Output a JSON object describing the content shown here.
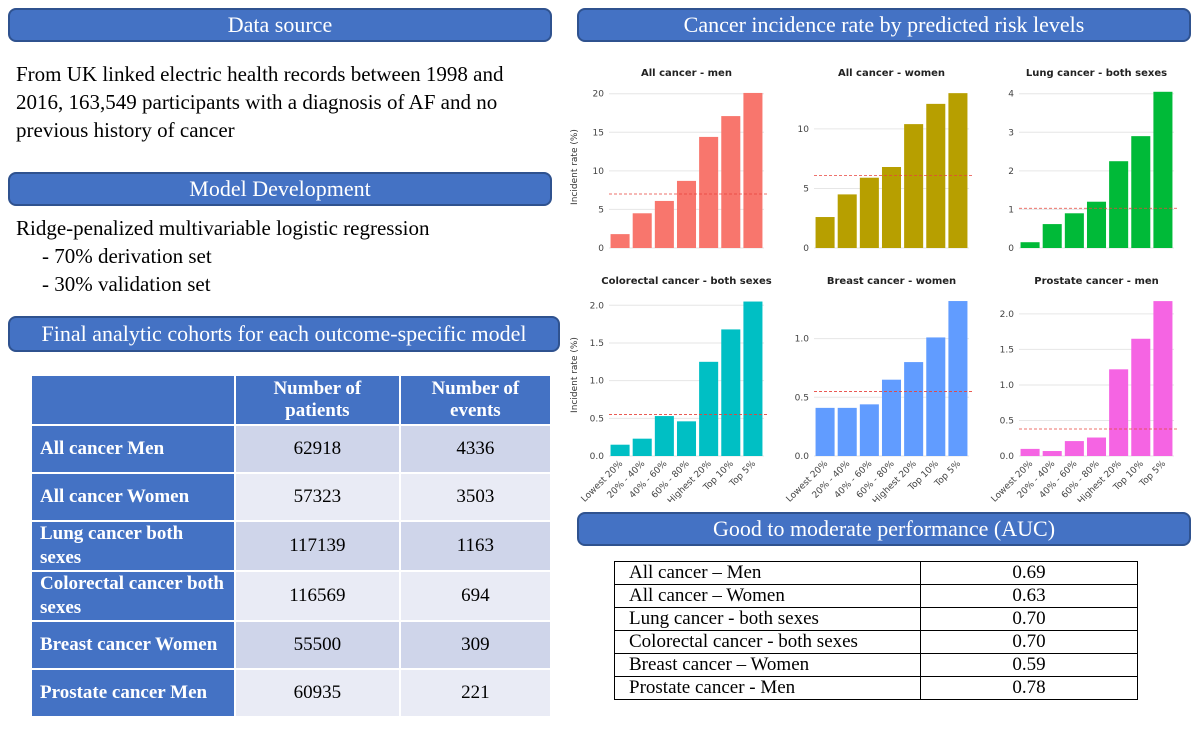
{
  "left": {
    "data_source_title": "Data source",
    "data_source_text": "From UK linked electric health records between 1998 and 2016, 163,549 participants with a diagnosis of AF and no previous history of cancer",
    "model_title": "Model Development",
    "model_line1": "Ridge-penalized multivariable logistic regression",
    "model_line2": "- 70% derivation set",
    "model_line3": "- 30% validation set",
    "cohorts_title": "Final analytic cohorts for each outcome-specific model",
    "cohort_headers": [
      "Number of patients",
      "Number of events"
    ],
    "cohort_rows": [
      {
        "label": "All cancer Men",
        "patients": "62918",
        "events": "4336"
      },
      {
        "label": "All cancer Women",
        "patients": "57323",
        "events": "3503"
      },
      {
        "label": "Lung cancer both sexes",
        "patients": "117139",
        "events": "1163"
      },
      {
        "label": "Colorectal cancer both sexes",
        "patients": "116569",
        "events": "694"
      },
      {
        "label": "Breast cancer Women",
        "patients": "55500",
        "events": "309"
      },
      {
        "label": "Prostate cancer Men",
        "patients": "60935",
        "events": "221"
      }
    ]
  },
  "right": {
    "charts_title": "Cancer incidence rate by predicted risk levels",
    "auc_title": "Good to moderate performance (AUC)",
    "auc_rows": [
      {
        "label": "All cancer – Men",
        "value": "0.69"
      },
      {
        "label": "All cancer – Women",
        "value": "0.63"
      },
      {
        "label": "Lung cancer - both sexes",
        "value": "0.70"
      },
      {
        "label": "Colorectal cancer - both sexes",
        "value": "0.70"
      },
      {
        "label": "Breast cancer – Women",
        "value": "0.59"
      },
      {
        "label": "Prostate cancer - Men",
        "value": "0.78"
      }
    ]
  },
  "chart_data": [
    {
      "type": "bar",
      "title": "All cancer - men",
      "color": "#f8766d",
      "categories": [
        "Lowest 20%",
        "20% - 40%",
        "40% - 60%",
        "60% - 80%",
        "Highest 20%",
        "Top 10%",
        "Top 5%"
      ],
      "values": [
        1.8,
        4.5,
        6.1,
        8.7,
        14.4,
        17.1,
        20.1
      ],
      "ylim": [
        0,
        21
      ],
      "yticks": [
        0,
        5,
        10,
        15,
        20
      ],
      "yticklabels": [
        "0",
        "5",
        "10",
        "15",
        "20"
      ],
      "reference_line": 7.0,
      "ylabel": "Incident rate (%)"
    },
    {
      "type": "bar",
      "title": "All cancer - women",
      "color": "#b79f00",
      "categories": [
        "Lowest 20%",
        "20% - 40%",
        "40% - 60%",
        "60% - 80%",
        "Highest 20%",
        "Top 10%",
        "Top 5%"
      ],
      "values": [
        2.6,
        4.5,
        5.9,
        6.8,
        10.4,
        12.1,
        13.0
      ],
      "ylim": [
        0,
        13.6
      ],
      "yticks": [
        0,
        5,
        10
      ],
      "yticklabels": [
        "0",
        "5",
        "10"
      ],
      "reference_line": 6.1,
      "ylabel": ""
    },
    {
      "type": "bar",
      "title": "Lung cancer - both sexes",
      "color": "#00ba38",
      "categories": [
        "Lowest 20%",
        "20% - 40%",
        "40% - 60%",
        "60% - 80%",
        "Highest 20%",
        "Top 10%",
        "Top 5%"
      ],
      "values": [
        0.15,
        0.62,
        0.9,
        1.2,
        2.25,
        2.9,
        4.05
      ],
      "ylim": [
        0,
        4.2
      ],
      "yticks": [
        0,
        1,
        2,
        3,
        4
      ],
      "yticklabels": [
        "0",
        "1",
        "2",
        "3",
        "4"
      ],
      "reference_line": 1.03,
      "ylabel": ""
    },
    {
      "type": "bar",
      "title": "Colorectal cancer - both sexes",
      "color": "#00bfc4",
      "categories": [
        "Lowest 20%",
        "20% - 40%",
        "40% - 60%",
        "60% - 80%",
        "Highest 20%",
        "Top 10%",
        "Top 5%"
      ],
      "values": [
        0.15,
        0.23,
        0.53,
        0.46,
        1.25,
        1.68,
        2.05
      ],
      "ylim": [
        0,
        2.15
      ],
      "yticks": [
        0,
        0.5,
        1,
        1.5,
        2
      ],
      "yticklabels": [
        "0.0",
        "0.5",
        "1.0",
        "1.5",
        "2.0"
      ],
      "reference_line": 0.55,
      "ylabel": "Incident rate (%)"
    },
    {
      "type": "bar",
      "title": "Breast cancer - women",
      "color": "#619cff",
      "categories": [
        "Lowest 20%",
        "20% - 40%",
        "40% - 60%",
        "60% - 80%",
        "Highest 20%",
        "Top 10%",
        "Top 5%"
      ],
      "values": [
        0.41,
        0.41,
        0.44,
        0.65,
        0.8,
        1.01,
        1.32
      ],
      "ylim": [
        0,
        1.38
      ],
      "yticks": [
        0,
        0.5,
        1
      ],
      "yticklabels": [
        "0.0",
        "0.5",
        "1.0"
      ],
      "reference_line": 0.55,
      "ylabel": ""
    },
    {
      "type": "bar",
      "title": "Prostate cancer - men",
      "color": "#f564e3",
      "categories": [
        "Lowest 20%",
        "20% - 40%",
        "40% - 60%",
        "60% - 80%",
        "Highest 20%",
        "Top 10%",
        "Top 5%"
      ],
      "values": [
        0.1,
        0.07,
        0.21,
        0.26,
        1.22,
        1.65,
        2.18
      ],
      "ylim": [
        0,
        2.28
      ],
      "yticks": [
        0,
        0.5,
        1,
        1.5,
        2
      ],
      "yticklabels": [
        "0.0",
        "0.5",
        "1.0",
        "1.5",
        "2.0"
      ],
      "reference_line": 0.38,
      "ylabel": ""
    }
  ]
}
